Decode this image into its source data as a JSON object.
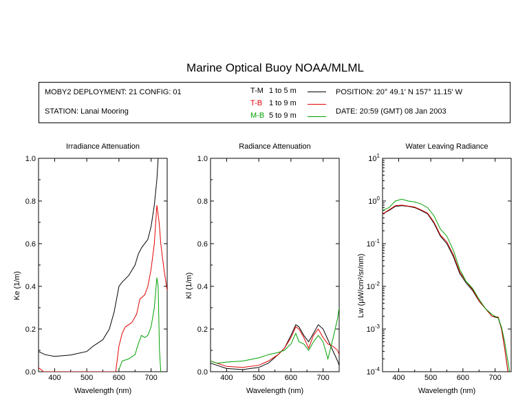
{
  "title": "Marine Optical Buoy NOAA/MLML",
  "info": {
    "deployment": "MOBY2 DEPLOYMENT: 21 CONFIG: 01",
    "station": "STATION: Lanai Mooring",
    "position": "POSITION: 20° 49.1' N   157° 11.15' W",
    "date": "DATE: 20:59 (GMT) 08 Jan 2003"
  },
  "legend": [
    {
      "code": "T-M",
      "range": "1 to 5  m",
      "color": "#000000"
    },
    {
      "code": "T-B",
      "range": "1 to 9  m",
      "color": "#e00000"
    },
    {
      "code": "M-B",
      "range": "5 to 9  m",
      "color": "#00a000"
    }
  ],
  "chart_data": [
    {
      "type": "line",
      "title": "Irradiance Attenuation",
      "xlabel": "Wavelength (nm)",
      "ylabel": "Ke  (1/m)",
      "xlim": [
        350,
        750
      ],
      "ylim": [
        0,
        1
      ],
      "xticks": [
        "400",
        "500",
        "600",
        "700"
      ],
      "yticks": [
        "0.0",
        "0.2",
        "0.4",
        "0.6",
        "0.8",
        "1.0"
      ],
      "series": [
        {
          "name": "T-M",
          "color": "#000000",
          "x": [
            350,
            370,
            400,
            450,
            500,
            520,
            550,
            570,
            585,
            600,
            610,
            630,
            650,
            660,
            670,
            690,
            700,
            710,
            718,
            722
          ],
          "y": [
            0.095,
            0.08,
            0.072,
            0.078,
            0.095,
            0.12,
            0.15,
            0.2,
            0.28,
            0.4,
            0.42,
            0.45,
            0.5,
            0.55,
            0.58,
            0.62,
            0.68,
            0.78,
            0.9,
            1.0
          ]
        },
        {
          "name": "T-B",
          "color": "#e00000",
          "x": [
            350,
            358,
            365,
            590,
            600,
            610,
            620,
            640,
            655,
            665,
            680,
            690,
            700,
            710,
            718,
            725,
            730,
            740,
            750
          ],
          "y": [
            0.018,
            0.01,
            0.0,
            0.0,
            0.12,
            0.18,
            0.21,
            0.23,
            0.27,
            0.34,
            0.36,
            0.4,
            0.48,
            0.6,
            0.78,
            0.7,
            0.6,
            0.48,
            0.38
          ]
        },
        {
          "name": "M-B",
          "color": "#00a000",
          "x": [
            600,
            610,
            630,
            650,
            660,
            670,
            680,
            690,
            700,
            710,
            718,
            722,
            726,
            730
          ],
          "y": [
            0.01,
            0.05,
            0.06,
            0.08,
            0.13,
            0.17,
            0.16,
            0.17,
            0.21,
            0.3,
            0.44,
            0.4,
            0.1,
            0.0
          ]
        }
      ]
    },
    {
      "type": "line",
      "title": "Radiance Attenuation",
      "xlabel": "Wavelength (nm)",
      "ylabel": "Kl  (1/m)",
      "xlim": [
        350,
        750
      ],
      "ylim": [
        0,
        1
      ],
      "xticks": [
        "400",
        "500",
        "600",
        "700"
      ],
      "yticks": [
        "0.0",
        "0.2",
        "0.4",
        "0.6",
        "0.8",
        "1.0"
      ],
      "series": [
        {
          "name": "T-M",
          "color": "#000000",
          "x": [
            350,
            370,
            400,
            450,
            500,
            530,
            560,
            580,
            600,
            615,
            625,
            640,
            655,
            670,
            685,
            700,
            715,
            730,
            745,
            750
          ],
          "y": [
            0.04,
            0.03,
            0.015,
            0.01,
            0.02,
            0.04,
            0.08,
            0.11,
            0.17,
            0.22,
            0.21,
            0.17,
            0.14,
            0.18,
            0.22,
            0.2,
            0.15,
            0.1,
            0.05,
            0.03
          ]
        },
        {
          "name": "T-B",
          "color": "#e00000",
          "x": [
            350,
            370,
            400,
            450,
            500,
            530,
            560,
            580,
            600,
            615,
            625,
            640,
            655,
            670,
            685,
            700,
            715,
            730,
            745,
            750
          ],
          "y": [
            0.05,
            0.04,
            0.025,
            0.02,
            0.03,
            0.05,
            0.08,
            0.11,
            0.16,
            0.21,
            0.2,
            0.16,
            0.11,
            0.17,
            0.2,
            0.16,
            0.13,
            0.12,
            0.1,
            0.08
          ]
        },
        {
          "name": "M-B",
          "color": "#00a000",
          "x": [
            350,
            370,
            400,
            450,
            500,
            530,
            560,
            580,
            600,
            615,
            625,
            640,
            655,
            670,
            685,
            700,
            715,
            730,
            745,
            750
          ],
          "y": [
            0.05,
            0.04,
            0.045,
            0.05,
            0.065,
            0.08,
            0.09,
            0.1,
            0.13,
            0.18,
            0.14,
            0.13,
            0.1,
            0.14,
            0.17,
            0.14,
            0.06,
            0.15,
            0.25,
            0.3
          ]
        }
      ]
    },
    {
      "type": "line",
      "title": "Water Leaving Radiance",
      "xlabel": "Wavelength (nm)",
      "ylabel": "Lw (µW/cm²/sr/nm)",
      "xlim": [
        350,
        750
      ],
      "ylim": [
        0.0001,
        10
      ],
      "yscale": "log",
      "xticks": [
        "400",
        "500",
        "600",
        "700"
      ],
      "yticks": [
        "10-4",
        "10-3",
        "10-2",
        "10-1",
        "100",
        "101"
      ],
      "series": [
        {
          "name": "T-M",
          "color": "#000000",
          "x": [
            350,
            370,
            390,
            410,
            430,
            450,
            470,
            490,
            510,
            530,
            550,
            570,
            590,
            610,
            630,
            650,
            670,
            690,
            710,
            720,
            730,
            740
          ],
          "y": [
            0.5,
            0.6,
            0.75,
            0.78,
            0.75,
            0.7,
            0.6,
            0.5,
            0.3,
            0.15,
            0.1,
            0.05,
            0.02,
            0.012,
            0.008,
            0.0045,
            0.003,
            0.002,
            0.0018,
            0.001,
            0.00035,
            0.0001
          ]
        },
        {
          "name": "T-B",
          "color": "#e00000",
          "x": [
            350,
            370,
            390,
            410,
            430,
            450,
            470,
            490,
            510,
            530,
            550,
            570,
            590,
            610,
            630,
            650,
            670,
            690,
            710,
            720,
            730,
            740
          ],
          "y": [
            0.5,
            0.62,
            0.78,
            0.8,
            0.76,
            0.72,
            0.62,
            0.52,
            0.32,
            0.16,
            0.11,
            0.055,
            0.022,
            0.013,
            0.0085,
            0.0046,
            0.003,
            0.002,
            0.0019,
            0.001,
            0.00035,
            0.0001
          ]
        },
        {
          "name": "M-B",
          "color": "#00a000",
          "x": [
            350,
            370,
            390,
            410,
            430,
            450,
            470,
            490,
            510,
            530,
            550,
            570,
            590,
            610,
            630,
            650,
            670,
            690,
            710,
            720,
            730,
            745
          ],
          "y": [
            0.6,
            0.7,
            1.0,
            1.1,
            1.0,
            0.95,
            0.85,
            0.7,
            0.45,
            0.22,
            0.15,
            0.07,
            0.025,
            0.013,
            0.009,
            0.005,
            0.003,
            0.0022,
            0.0018,
            0.0011,
            0.0005,
            0.0001
          ]
        }
      ]
    }
  ]
}
